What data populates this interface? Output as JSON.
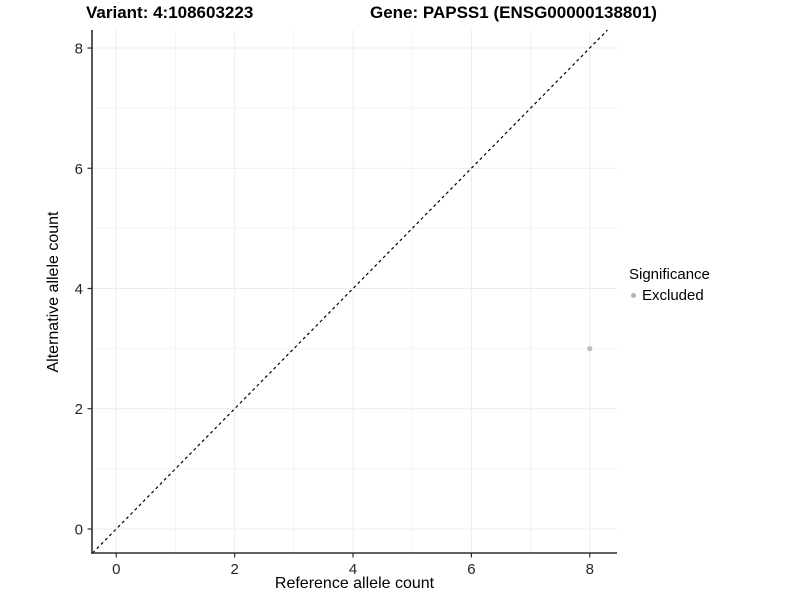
{
  "titles": {
    "variant": "Variant: 4:108603223",
    "gene": "Gene: PAPSS1 (ENSG00000138801)"
  },
  "chart_data": {
    "type": "scatter",
    "xlabel": "Reference allele count",
    "ylabel": "Alternative allele count",
    "xlim": [
      -0.41,
      8.46
    ],
    "ylim": [
      -0.4,
      8.3
    ],
    "x_ticks": [
      0,
      2,
      4,
      6,
      8
    ],
    "y_ticks": [
      0,
      2,
      4,
      6,
      8
    ],
    "x_minor_ticks": [
      1,
      3,
      5,
      7
    ],
    "y_minor_ticks": [
      1,
      3,
      5,
      7
    ],
    "grid": true,
    "identity_line": {
      "type": "y=x",
      "style": "dashed",
      "color": "#000000"
    },
    "series": [
      {
        "name": "Excluded",
        "color": "#bebebe",
        "points": [
          {
            "x": 8,
            "y": 3
          }
        ]
      }
    ],
    "legend": {
      "title": "Significance",
      "position": "right",
      "items": [
        {
          "label": "Excluded",
          "color": "#b3b3b3"
        }
      ]
    },
    "style": {
      "grid_major_color": "#ececec",
      "grid_minor_color": "#f4f4f4",
      "axis_color": "#2e2e2e",
      "tick_label_color": "#262626",
      "background": "#ffffff"
    }
  }
}
